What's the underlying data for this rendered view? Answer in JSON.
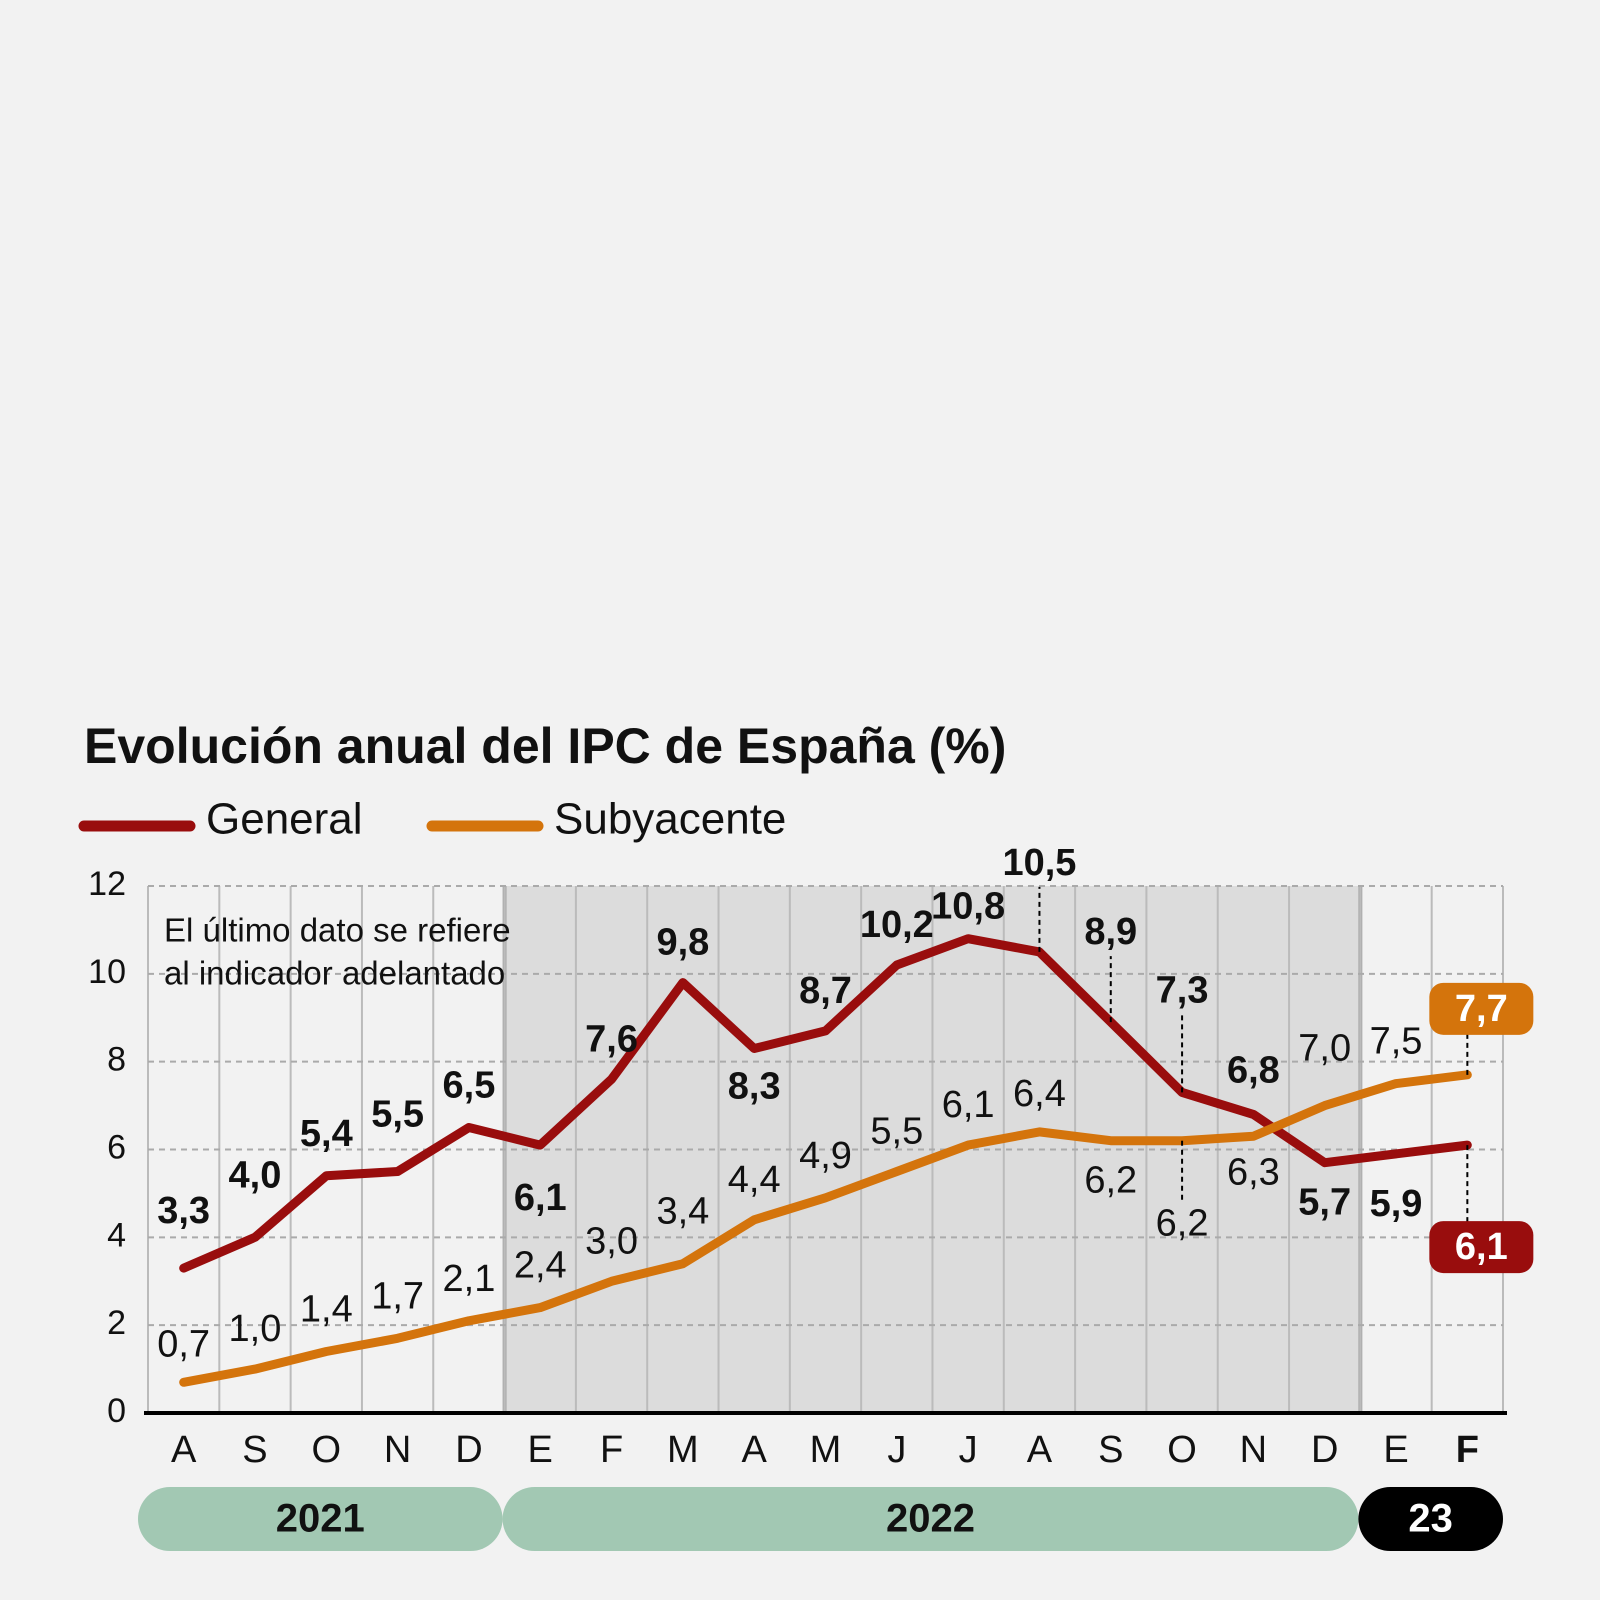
{
  "chart_data": {
    "type": "line",
    "title": "Evolución anual del IPC de España (%)",
    "annotation": [
      "El último dato se refiere",
      "al indicador adelantado"
    ],
    "categories": [
      "A",
      "S",
      "O",
      "N",
      "D",
      "E",
      "F",
      "M",
      "A",
      "M",
      "J",
      "J",
      "A",
      "S",
      "O",
      "N",
      "D",
      "E",
      "F"
    ],
    "years": [
      "2021",
      "2022",
      "23"
    ],
    "ylim": [
      0,
      12
    ],
    "yticks": [
      0,
      2,
      4,
      6,
      8,
      10,
      12
    ],
    "grid": true,
    "series": [
      {
        "name": "General",
        "color": "#990d0d",
        "values": [
          3.3,
          4.0,
          5.4,
          5.5,
          6.5,
          6.1,
          7.6,
          9.8,
          8.3,
          8.7,
          10.2,
          10.8,
          10.5,
          8.9,
          7.3,
          6.8,
          5.7,
          5.9,
          6.1
        ],
        "value_labels": [
          "3,3",
          "4,0",
          "5,4",
          "5,5",
          "6,5",
          "6,1",
          "7,6",
          "9,8",
          "8,3",
          "8,7",
          "10,2",
          "10,8",
          "10,5",
          "8,9",
          "7,3",
          "6,8",
          "5,7",
          "5,9",
          "6,1"
        ]
      },
      {
        "name": "Subyacente",
        "color": "#d4740c",
        "values": [
          0.7,
          1.0,
          1.4,
          1.7,
          2.1,
          2.4,
          3.0,
          3.4,
          4.4,
          4.9,
          5.5,
          6.1,
          6.4,
          6.2,
          6.2,
          6.3,
          7.0,
          7.5,
          7.7
        ],
        "value_labels": [
          "0,7",
          "1,0",
          "1,4",
          "1,7",
          "2,1",
          "2,4",
          "3,0",
          "3,4",
          "4,4",
          "4,9",
          "5,5",
          "6,1",
          "6,4",
          "6,2",
          "6,2",
          "6,3",
          "7,0",
          "7,5",
          "7,7"
        ]
      }
    ]
  }
}
